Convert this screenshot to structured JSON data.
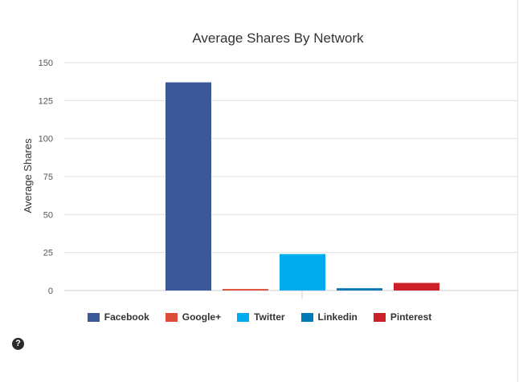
{
  "chart_data": {
    "type": "bar",
    "title": "Average Shares By Network",
    "xlabel": "",
    "ylabel": "Average Shares",
    "ylim": [
      0,
      150
    ],
    "yticks": [
      0,
      25,
      50,
      75,
      100,
      125,
      150
    ],
    "grid": true,
    "legend_position": "bottom-center",
    "series": [
      {
        "name": "Facebook",
        "value": 137,
        "color": "#3b5998"
      },
      {
        "name": "Google+",
        "value": 1,
        "color": "#dd4b39"
      },
      {
        "name": "Twitter",
        "value": 24,
        "color": "#00aced"
      },
      {
        "name": "Linkedin",
        "value": 1.5,
        "color": "#007bb6"
      },
      {
        "name": "Pinterest",
        "value": 5,
        "color": "#cb2027"
      }
    ]
  },
  "help": {
    "icon": "question-circle-icon",
    "glyph": "?"
  }
}
